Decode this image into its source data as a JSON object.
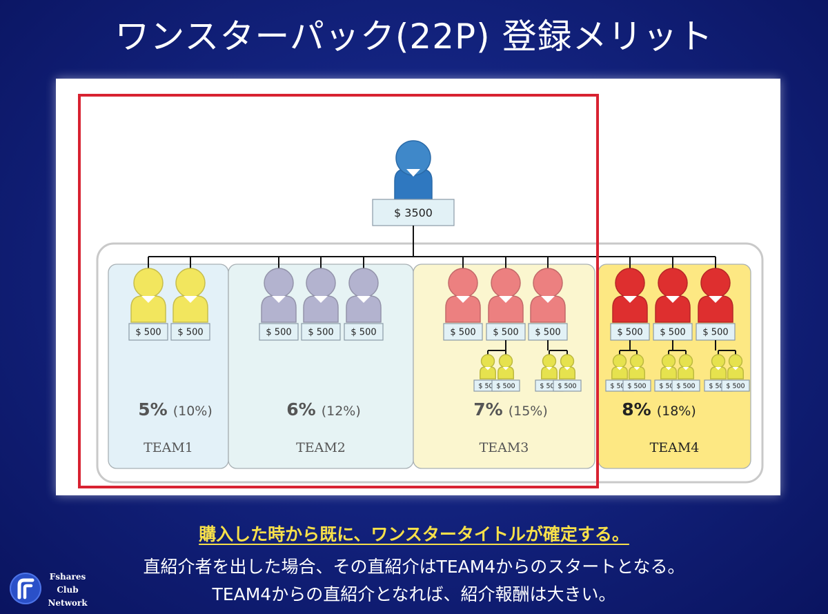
{
  "title": "ワンスターパック(22P) 登録メリット",
  "top": {
    "amount": "$ 3500"
  },
  "teams": [
    {
      "name": "TEAM1",
      "rate": "5%",
      "rate_alt": "(10%)",
      "members": [
        "$ 500",
        "$ 500"
      ],
      "color": "#f2e65e",
      "bg": "#e3f1f8"
    },
    {
      "name": "TEAM2",
      "rate": "6%",
      "rate_alt": "(12%)",
      "members": [
        "$ 500",
        "$ 500",
        "$ 500"
      ],
      "color": "#b3b3cf",
      "bg": "#e6f3f4"
    },
    {
      "name": "TEAM3",
      "rate": "7%",
      "rate_alt": "(15%)",
      "members": [
        "$ 500",
        "$ 500",
        "$ 500"
      ],
      "color": "#ec8080",
      "bg": "#fbf6cf",
      "sub": [
        "$ 500",
        "$ 500",
        "$ 500",
        "$ 500"
      ]
    },
    {
      "name": "TEAM4",
      "rate": "8%",
      "rate_alt": "(18%)",
      "members": [
        "$ 500",
        "$ 500",
        "$ 500"
      ],
      "color": "#de2f2f",
      "bg": "#fde883",
      "sub": [
        "$ 500",
        "$ 500",
        "$ 500",
        "$ 500",
        "$ 500",
        "$ 500"
      ]
    }
  ],
  "highlight_color": "#d82231",
  "footer": {
    "line1": "購入した時から既に、ワンスタータイトルが確定する。",
    "line2": "直紹介者を出した場合、その直紹介はTEAM4からのスタートとなる。",
    "line3": "TEAM4からの直紹介となれば、紹介報酬は大きい。"
  },
  "logo": {
    "icon": "fshares-logo-icon",
    "line1": "Fshares",
    "line2": "Club",
    "line3": "Network"
  }
}
